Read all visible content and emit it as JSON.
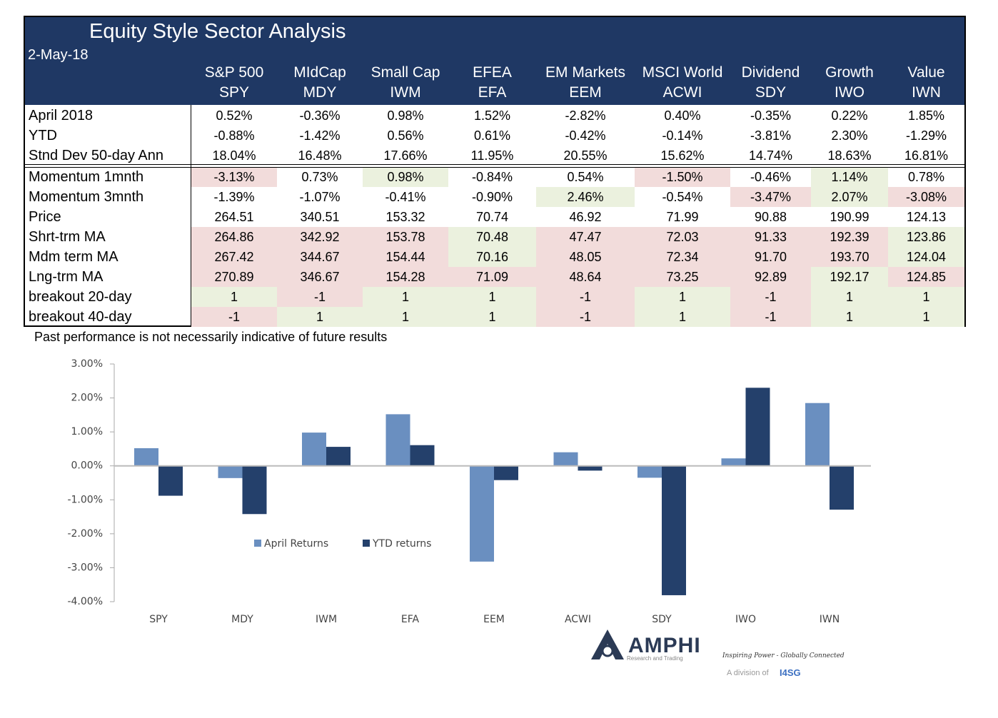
{
  "header": {
    "title": "Equity Style Sector Analysis",
    "date": "2-May-18"
  },
  "table": {
    "columns": [
      {
        "name": "S&P 500",
        "ticker": "SPY"
      },
      {
        "name": "MIdCap",
        "ticker": "MDY"
      },
      {
        "name": "Small Cap",
        "ticker": "IWM"
      },
      {
        "name": "EFEA",
        "ticker": "EFA"
      },
      {
        "name": "EM Markets",
        "ticker": "EEM"
      },
      {
        "name": "MSCI World",
        "ticker": "ACWI"
      },
      {
        "name": "Dividend",
        "ticker": "SDY"
      },
      {
        "name": "Growth",
        "ticker": "IWO"
      },
      {
        "name": "Value",
        "ticker": "IWN"
      }
    ],
    "rows": [
      {
        "label": "April 2018",
        "cells": [
          "0.52%",
          "-0.36%",
          "0.98%",
          "1.52%",
          "-2.82%",
          "0.40%",
          "-0.35%",
          "0.22%",
          "1.85%"
        ],
        "shading": [
          null,
          null,
          null,
          null,
          null,
          null,
          null,
          null,
          null
        ]
      },
      {
        "label": "YTD",
        "cells": [
          "-0.88%",
          "-1.42%",
          "0.56%",
          "0.61%",
          "-0.42%",
          "-0.14%",
          "-3.81%",
          "2.30%",
          "-1.29%"
        ],
        "shading": [
          null,
          null,
          null,
          null,
          null,
          null,
          null,
          null,
          null
        ]
      },
      {
        "label": "Stnd Dev 50-day Ann",
        "cells": [
          "18.04%",
          "16.48%",
          "17.66%",
          "11.95%",
          "20.55%",
          "15.62%",
          "14.74%",
          "18.63%",
          "16.81%"
        ],
        "shading": [
          null,
          null,
          null,
          null,
          null,
          null,
          null,
          null,
          null
        ]
      },
      {
        "label": "Momentum 1mnth",
        "cells": [
          "-3.13%",
          "0.73%",
          "0.98%",
          "-0.84%",
          "0.54%",
          "-1.50%",
          "-0.46%",
          "1.14%",
          "0.78%"
        ],
        "shading": [
          "#f2dcdb",
          null,
          "#ebf1de",
          null,
          null,
          "#f2dcdb",
          null,
          "#ebf1de",
          null
        ]
      },
      {
        "label": "Momentum 3mnth",
        "cells": [
          "-1.39%",
          "-1.07%",
          "-0.41%",
          "-0.90%",
          "2.46%",
          "-0.54%",
          "-3.47%",
          "2.07%",
          "-3.08%"
        ],
        "shading": [
          null,
          null,
          null,
          null,
          "#ebf1de",
          null,
          "#f2dcdb",
          "#ebf1de",
          "#f2dcdb"
        ]
      },
      {
        "label": "Price",
        "cells": [
          "264.51",
          "340.51",
          "153.32",
          "70.74",
          "46.92",
          "71.99",
          "90.88",
          "190.99",
          "124.13"
        ],
        "shading": [
          null,
          null,
          null,
          null,
          null,
          null,
          null,
          null,
          null
        ]
      },
      {
        "label": "Shrt-trm MA",
        "cells": [
          "264.86",
          "342.92",
          "153.78",
          "70.48",
          "47.47",
          "72.03",
          "91.33",
          "192.39",
          "123.86"
        ],
        "shading": [
          "#f2dcdb",
          "#f2dcdb",
          "#f2dcdb",
          "#ebf1de",
          "#f2dcdb",
          "#f2dcdb",
          "#f2dcdb",
          "#f2dcdb",
          "#ebf1de"
        ]
      },
      {
        "label": "Mdm term MA",
        "cells": [
          "267.42",
          "344.67",
          "154.44",
          "70.16",
          "48.05",
          "72.34",
          "91.70",
          "193.70",
          "124.04"
        ],
        "shading": [
          "#f2dcdb",
          "#f2dcdb",
          "#f2dcdb",
          "#ebf1de",
          "#f2dcdb",
          "#f2dcdb",
          "#f2dcdb",
          "#f2dcdb",
          "#ebf1de"
        ]
      },
      {
        "label": "Lng-trm MA",
        "cells": [
          "270.89",
          "346.67",
          "154.28",
          "71.09",
          "48.64",
          "73.25",
          "92.89",
          "192.17",
          "124.85"
        ],
        "shading": [
          "#f2dcdb",
          "#f2dcdb",
          "#f2dcdb",
          "#f2dcdb",
          "#f2dcdb",
          "#f2dcdb",
          "#f2dcdb",
          "#ebf1de",
          "#f2dcdb"
        ]
      },
      {
        "label": "breakout 20-day",
        "cells": [
          "1",
          "-1",
          "1",
          "1",
          "-1",
          "1",
          "-1",
          "1",
          "1"
        ],
        "shading": [
          "#ebf1de",
          "#f2dcdb",
          "#ebf1de",
          "#ebf1de",
          "#f2dcdb",
          "#ebf1de",
          "#f2dcdb",
          "#ebf1de",
          "#ebf1de"
        ]
      },
      {
        "label": "breakout 40-day",
        "cells": [
          "-1",
          "1",
          "1",
          "1",
          "-1",
          "1",
          "-1",
          "1",
          "1"
        ],
        "shading": [
          "#f2dcdb",
          "#ebf1de",
          "#ebf1de",
          "#ebf1de",
          "#f2dcdb",
          "#ebf1de",
          "#f2dcdb",
          "#ebf1de",
          "#ebf1de"
        ]
      }
    ]
  },
  "footnote": "Past performance is not necessarily indicative of future results",
  "chart_data": {
    "type": "bar",
    "categories": [
      "SPY",
      "MDY",
      "IWM",
      "EFA",
      "EEM",
      "ACWI",
      "SDY",
      "IWO",
      "IWN"
    ],
    "series": [
      {
        "name": "April Returns",
        "color": "#6a8fc0",
        "values": [
          0.52,
          -0.36,
          0.98,
          1.52,
          -2.82,
          0.4,
          -0.35,
          0.22,
          1.85
        ]
      },
      {
        "name": "YTD returns",
        "color": "#24406b",
        "values": [
          -0.88,
          -1.42,
          0.56,
          0.61,
          -0.42,
          -0.14,
          -3.81,
          2.3,
          -1.29
        ]
      }
    ],
    "ylim": [
      -4,
      3
    ],
    "yticks": [
      {
        "value": 3,
        "label": "3.00%"
      },
      {
        "value": 2,
        "label": "2.00%"
      },
      {
        "value": 1,
        "label": "1.00%"
      },
      {
        "value": 0,
        "label": "0.00%"
      },
      {
        "value": -1,
        "label": "-1.00%"
      },
      {
        "value": -2,
        "label": "-2.00%"
      },
      {
        "value": -3,
        "label": "-3.00%"
      },
      {
        "value": -4,
        "label": "-4.00%"
      }
    ]
  },
  "logo": {
    "name": "AMPHI",
    "subtitle": "Research and Trading",
    "tagline": "Inspiring Power - Globally Connected",
    "division": "A division of",
    "parent": "I4SG"
  }
}
